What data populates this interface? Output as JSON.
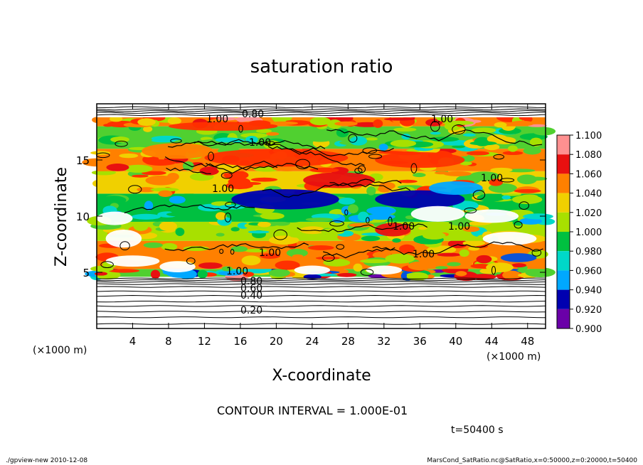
{
  "chart_data": {
    "type": "heatmap",
    "title": "saturation ratio",
    "xlabel": "X-coordinate",
    "ylabel": "Z-coordinate",
    "x_unit": "(×1000 m)",
    "z_unit": "(×1000 m)",
    "xlim": [
      0,
      50
    ],
    "ylim": [
      0,
      20
    ],
    "x_ticks": [
      "4",
      "8",
      "12",
      "16",
      "20",
      "24",
      "28",
      "32",
      "36",
      "40",
      "44",
      "48"
    ],
    "y_ticks": [
      "5",
      "10",
      "15"
    ],
    "colorbar": {
      "min": 0.9,
      "max": 1.1,
      "labels": [
        "1.100",
        "1.080",
        "1.060",
        "1.040",
        "1.020",
        "1.000",
        "0.980",
        "0.960",
        "0.940",
        "0.920",
        "0.900"
      ],
      "colors": [
        "#6a00a8",
        "#0000b0",
        "#0050e0",
        "#00a8ff",
        "#00d8c8",
        "#00c040",
        "#50d030",
        "#a8e000",
        "#f0d000",
        "#ff8000",
        "#ff3000",
        "#e81010",
        "#ff9090"
      ]
    },
    "contour_labels": [
      "0.20",
      "0.40",
      "0.60",
      "0.80",
      "1.00"
    ],
    "contour_interval_text": "CONTOUR INTERVAL = 1.000E-01",
    "time_text": "t=50400 s",
    "footer_left": "./gpview-new   2010-12-08",
    "footer_right": "MarsCond_SatRatio.nc@SatRatio,x=0:50000,z=0:20000,t=50400",
    "bands": [
      {
        "z0": 0.0,
        "z1": 4.6,
        "kind": "subsat"
      },
      {
        "z0": 4.6,
        "z1": 5.3,
        "kind": "mixed_low",
        "value": 1.0
      },
      {
        "z0": 5.3,
        "z1": 7.8,
        "kind": "mixed",
        "value": 1.04
      },
      {
        "z0": 7.8,
        "z1": 9.5,
        "kind": "mixed",
        "value": 1.01
      },
      {
        "z0": 9.5,
        "z1": 12.0,
        "kind": "mixed",
        "value": 0.99
      },
      {
        "z0": 12.0,
        "z1": 14.0,
        "kind": "mixed",
        "value": 1.03
      },
      {
        "z0": 14.0,
        "z1": 16.0,
        "kind": "mixed",
        "value": 1.04
      },
      {
        "z0": 16.0,
        "z1": 18.0,
        "kind": "mixed",
        "value": 1.0
      },
      {
        "z0": 18.0,
        "z1": 18.8,
        "kind": "mixed",
        "value": 1.05
      },
      {
        "z0": 18.8,
        "z1": 20.0,
        "kind": "subsat"
      }
    ],
    "features": [
      {
        "x": 21,
        "z": 11.5,
        "rx": 6,
        "rz": 0.9,
        "value": 0.93
      },
      {
        "x": 36,
        "z": 11.5,
        "rx": 5,
        "rz": 0.8,
        "value": 0.93
      },
      {
        "x": 40,
        "z": 12.5,
        "rx": 3,
        "rz": 0.6,
        "value": 0.95
      },
      {
        "x": 27,
        "z": 13.2,
        "rx": 4,
        "rz": 0.7,
        "value": 1.07
      },
      {
        "x": 20,
        "z": 15.2,
        "rx": 8,
        "rz": 0.8,
        "value": 1.06
      },
      {
        "x": 36,
        "z": 15.0,
        "rx": 5,
        "rz": 0.7,
        "value": 1.06
      },
      {
        "x": 9,
        "z": 15.8,
        "rx": 4,
        "rz": 0.7,
        "value": 1.05
      },
      {
        "x": 38,
        "z": 10.2,
        "rx": 3,
        "rz": 0.7,
        "value": 1.11
      },
      {
        "x": 44,
        "z": 10.0,
        "rx": 3,
        "rz": 0.6,
        "value": 1.11
      },
      {
        "x": 46,
        "z": 8.0,
        "rx": 3,
        "rz": 0.6,
        "value": 1.11
      },
      {
        "x": 3,
        "z": 8.0,
        "rx": 2,
        "rz": 0.8,
        "value": 1.11
      },
      {
        "x": 33,
        "z": 8.8,
        "rx": 2,
        "rz": 0.6,
        "value": 1.08
      },
      {
        "x": 4,
        "z": 6.0,
        "rx": 3,
        "rz": 0.5,
        "value": 1.11
      },
      {
        "x": 24,
        "z": 5.2,
        "rx": 2,
        "rz": 0.4,
        "value": 1.11
      },
      {
        "x": 32,
        "z": 5.2,
        "rx": 2,
        "rz": 0.4,
        "value": 1.11
      },
      {
        "x": 9,
        "z": 5.5,
        "rx": 2,
        "rz": 0.5,
        "value": 1.11
      },
      {
        "x": 47,
        "z": 6.3,
        "rx": 2,
        "rz": 0.4,
        "value": 0.94
      },
      {
        "x": 2,
        "z": 9.8,
        "rx": 2,
        "rz": 0.6,
        "value": 1.11
      },
      {
        "x": 14,
        "z": 18.0,
        "rx": 6,
        "rz": 0.4,
        "value": 1.06
      }
    ]
  }
}
